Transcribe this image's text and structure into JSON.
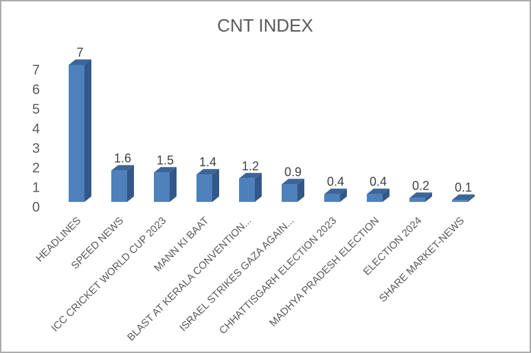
{
  "chart_data": {
    "type": "bar",
    "style": "3d-column",
    "title": "CNT INDEX",
    "categories": [
      "HEADLINES",
      "SPEED NEWS",
      "ICC CRICKET WORLD CUP 2023",
      "MANN KI BAAT",
      "BLAST AT KERALA CONVENTION...",
      "ISRAEL STRIKES GAZA AGAIN...",
      "CHHATTISGARH ELECTION 2023",
      "MADHYA PRADESH ELECTION",
      "ELECTION 2024",
      "SHARE MARKET-NEWS"
    ],
    "values": [
      7,
      1.6,
      1.5,
      1.4,
      1.2,
      0.9,
      0.4,
      0.4,
      0.2,
      0.1
    ],
    "data_labels": [
      "7",
      "1.6",
      "1.5",
      "1.4",
      "1.2",
      "0.9",
      "0.4",
      "0.4",
      "0.2",
      "0.1"
    ],
    "xlabel": "",
    "ylabel": "",
    "y_ticks": [
      0,
      1,
      2,
      3,
      4,
      5,
      6,
      7
    ],
    "ylim": [
      0,
      7
    ],
    "grid": false,
    "legend": "none",
    "category_label_rotation_deg": -45,
    "colors": {
      "bar_front": "#4e80bc",
      "bar_top": "#3c6697",
      "bar_side": "#315888",
      "title_text": "#595959",
      "axis_text": "#595959",
      "data_label_text": "#404040",
      "frame_border": "#ababab",
      "background": "#ffffff"
    }
  }
}
